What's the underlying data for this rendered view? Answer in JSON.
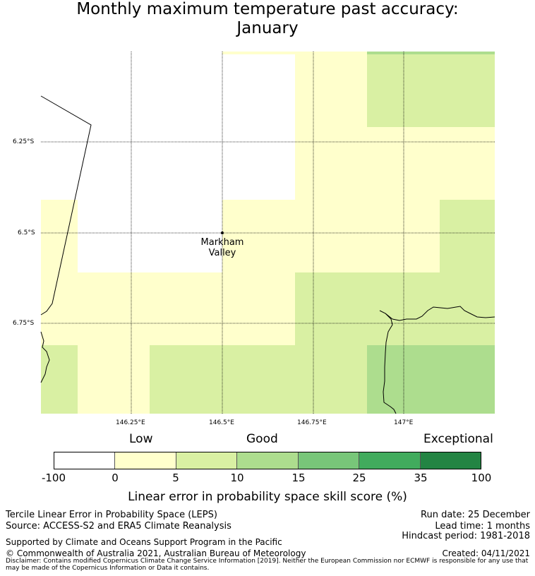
{
  "title_line1": "Monthly maximum temperature past accuracy:",
  "title_line2": "January",
  "map": {
    "longitude_ticks": [
      "146.25°E",
      "146.5°E",
      "146.75°E",
      "147°E"
    ],
    "latitude_ticks": [
      "6.25°S",
      "6.5°S",
      "6.75°S"
    ],
    "place": {
      "name_line1": "Markham",
      "name_line2": "Valley"
    }
  },
  "legend": {
    "category_low": "Low",
    "category_good": "Good",
    "category_exceptional": "Exceptional",
    "segments": [
      {
        "range": "-100 to 0",
        "color": "#ffffff"
      },
      {
        "range": "0 to 5",
        "color": "#ffffcc"
      },
      {
        "range": "5 to 10",
        "color": "#d9f0a3"
      },
      {
        "range": "10 to 15",
        "color": "#addd8e"
      },
      {
        "range": "15 to 25",
        "color": "#78c679"
      },
      {
        "range": "25 to 35",
        "color": "#41ab5d"
      },
      {
        "range": "35 to 100",
        "color": "#238443"
      }
    ],
    "ticks": [
      "-100",
      "0",
      "5",
      "10",
      "15",
      "25",
      "35",
      "100"
    ],
    "axis_label": "Linear error in probability space skill score (%)"
  },
  "info": {
    "method": "Tercile Linear Error in Probability Space (LEPS)",
    "source": "Source: ACCESS-S2 and ERA5 Climate Reanalysis",
    "run_date": "Run date: 25 December",
    "lead_time": "Lead time: 1 months",
    "hindcast": "Hindcast period: 1981-2018",
    "support": "Supported by Climate and Oceans Support Program in the Pacific",
    "copyright": "© Commonwealth of Australia 2021, Australian Bureau of Meteorology",
    "created": "Created: 04/11/2021",
    "disclaimer": "Disclaimer: Contains modified Copernicus Climate Change Service Information [2019]. Neither the European Commission nor ECMWF is responsible for any use that may be made of the Copernicus Information or Data it contains."
  },
  "colors": {
    "white": "#ffffff",
    "pale_yellow": "#ffffcc",
    "light_green": "#d9f0a3",
    "mid_green": "#addd8e"
  }
}
